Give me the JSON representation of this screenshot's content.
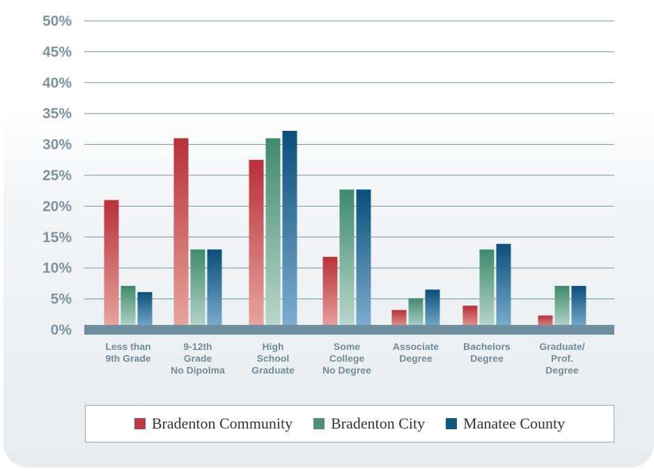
{
  "chart_data": {
    "type": "bar",
    "categories": [
      [
        "Less than",
        "9th Grade"
      ],
      [
        "9-12th",
        "Grade",
        "No Dipolma"
      ],
      [
        "High",
        "School",
        "Graduate"
      ],
      [
        "Some",
        "College",
        "No Degree"
      ],
      [
        "Associate",
        "Degree"
      ],
      [
        "Bachelors",
        "Degree"
      ],
      [
        "Graduate/",
        "Prof.",
        "Degree"
      ]
    ],
    "series": [
      {
        "name": "Bradenton Community",
        "values": [
          21,
          31,
          27.5,
          11.8,
          3.2,
          3.9,
          2.3
        ]
      },
      {
        "name": "Bradenton City",
        "values": [
          7.1,
          13,
          31,
          22.7,
          5.1,
          13,
          7.1
        ]
      },
      {
        "name": "Manatee County",
        "values": [
          6.1,
          13,
          32.2,
          22.7,
          6.5,
          13.9,
          7.1
        ]
      }
    ],
    "ylim": [
      0,
      50
    ],
    "yticks": [
      "0%",
      "5%",
      "10%",
      "15%",
      "20%",
      "25%",
      "30%",
      "35%",
      "40%",
      "45%",
      "50%"
    ],
    "grid": true,
    "legend_position": "bottom",
    "colors": {
      "series": [
        {
          "top": "#b8303a",
          "bottom": "#e8a7a0",
          "legend": "#bd3a40"
        },
        {
          "top": "#3f8a6c",
          "bottom": "#bcd9cf",
          "legend": "#4e8f78"
        },
        {
          "top": "#0a4f7a",
          "bottom": "#7fb0d1",
          "legend": "#0f5a80"
        }
      ],
      "gridline": "#6f93a5",
      "baseline": "#6d8fa0",
      "tick_text": "#7b94a3"
    }
  },
  "legend": [
    {
      "label": "Bradenton Community"
    },
    {
      "label": "Bradenton City"
    },
    {
      "label": "Manatee County"
    }
  ]
}
